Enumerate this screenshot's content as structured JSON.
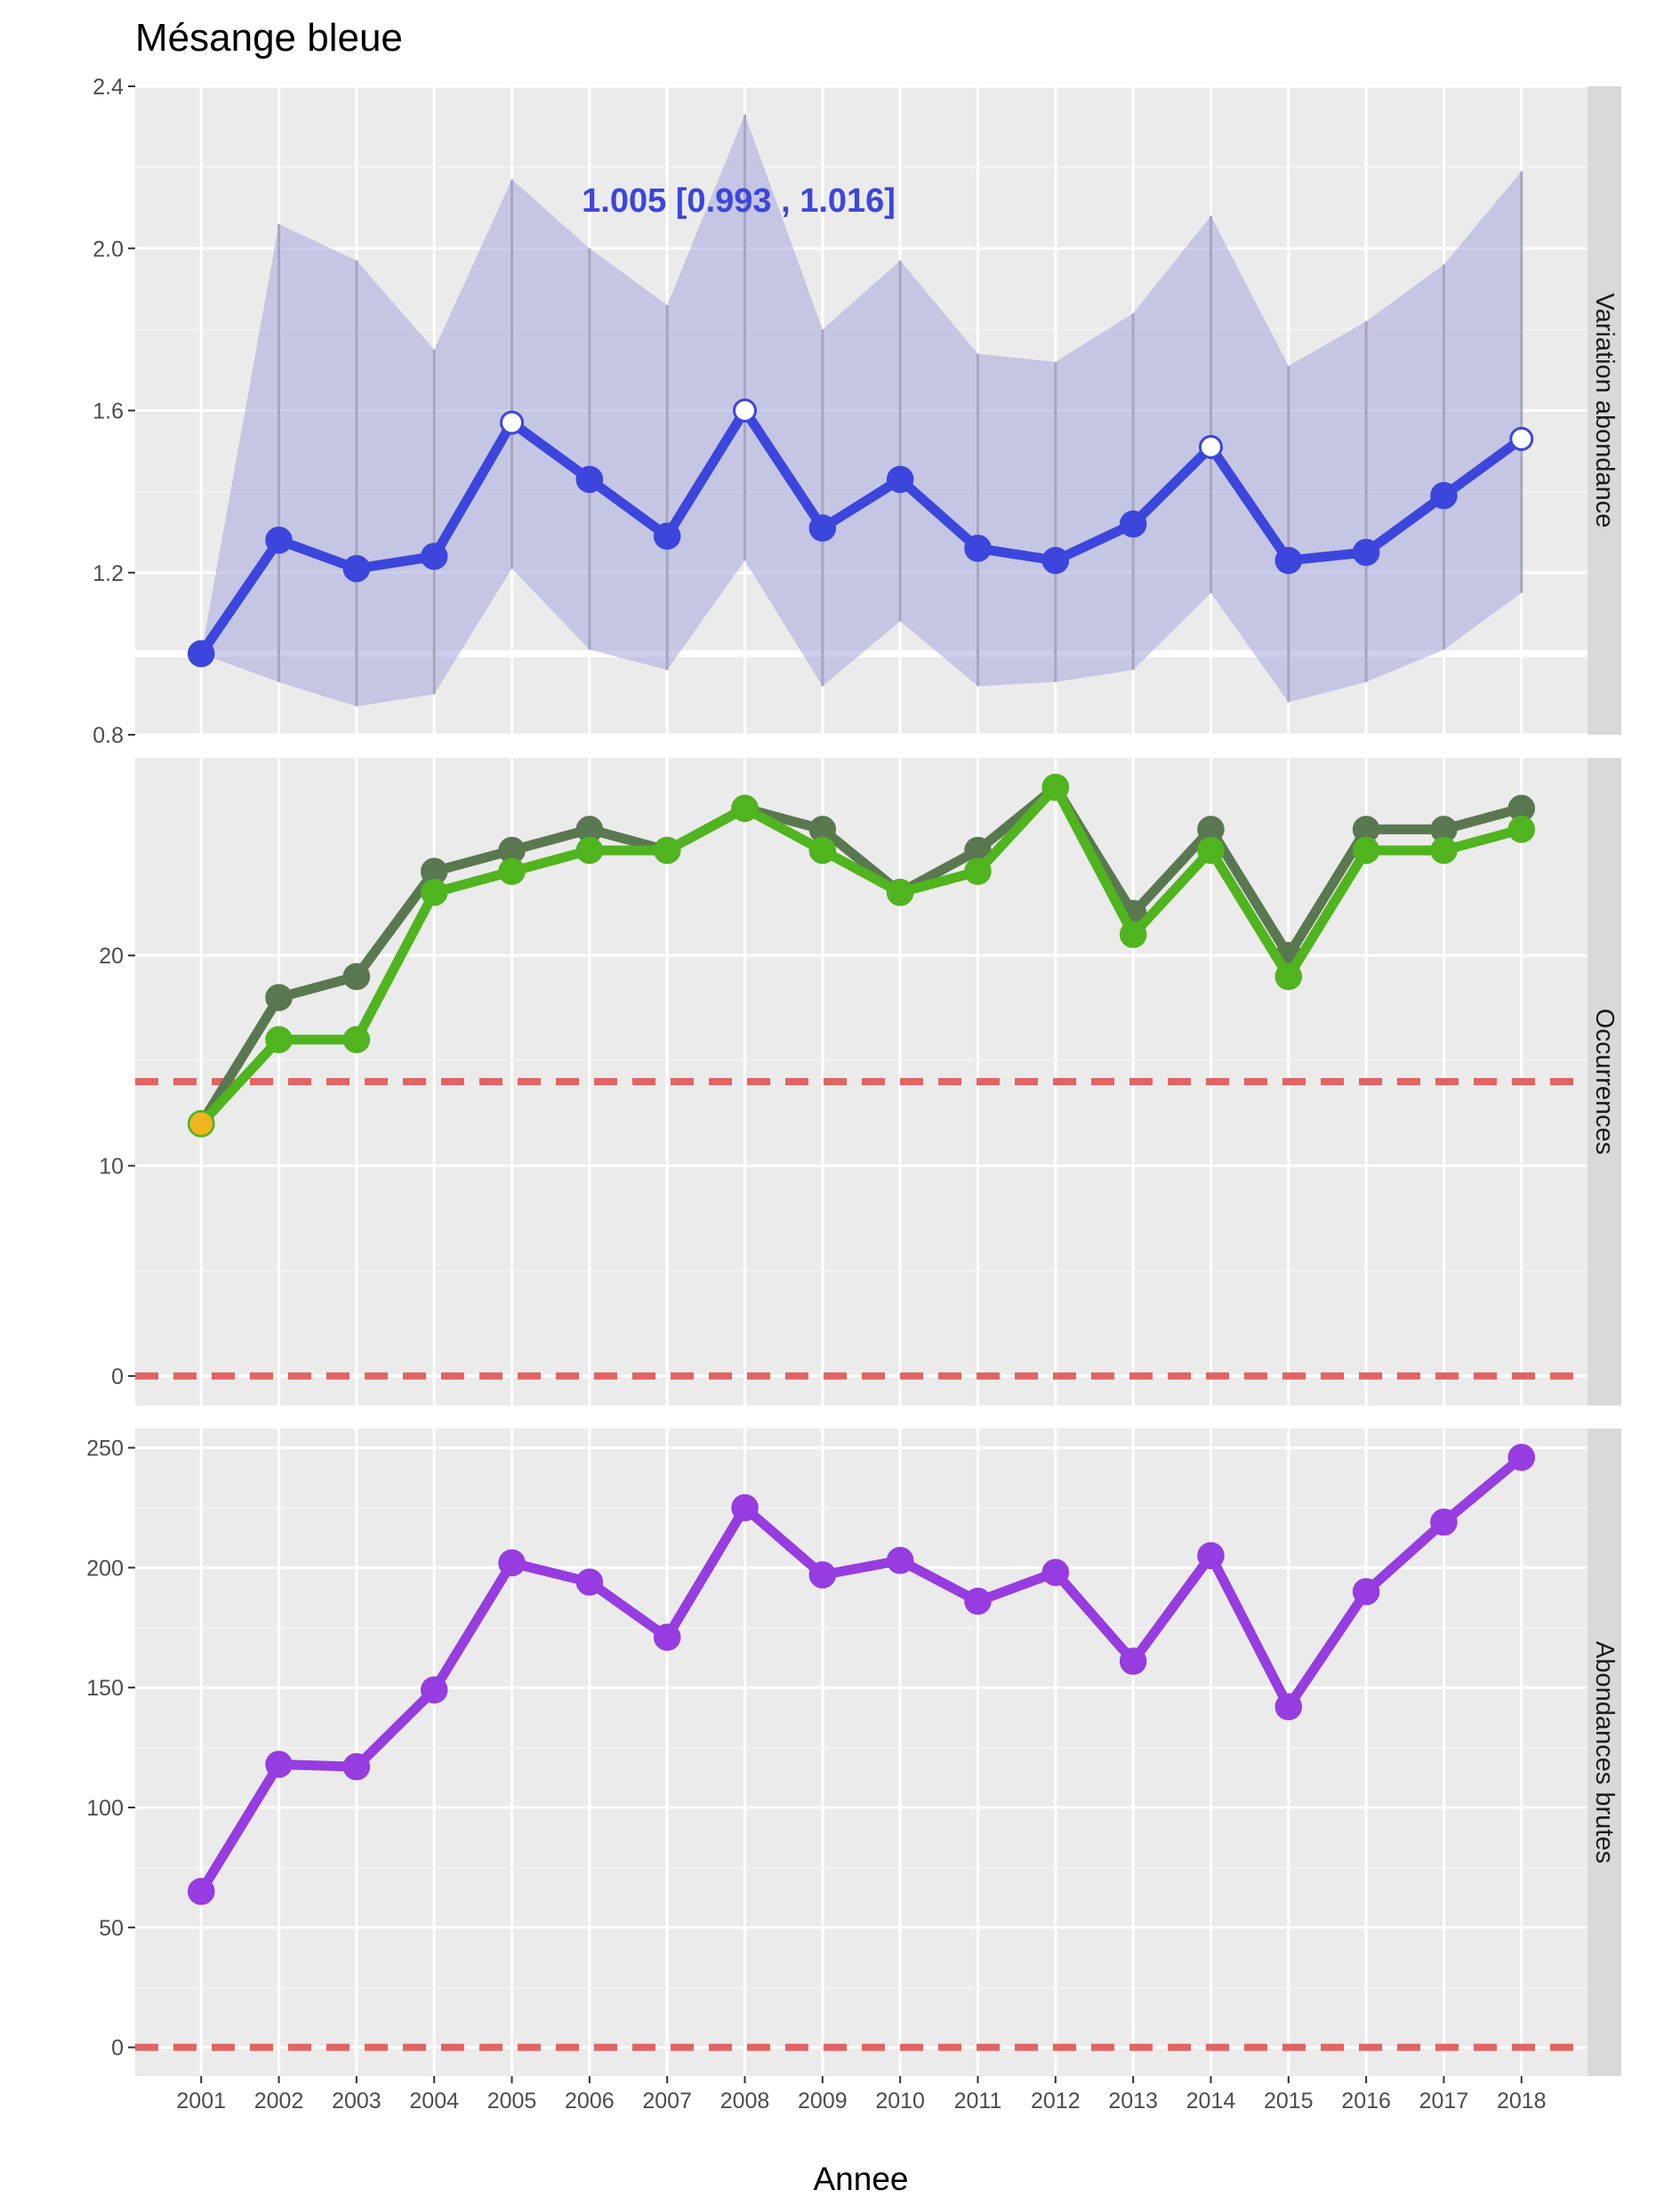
{
  "title": "Mésange bleue",
  "xlabel": "Annee",
  "chart_data": {
    "type": "line",
    "title": "Mésange bleue",
    "xlabel": "Annee",
    "x": [
      2001,
      2002,
      2003,
      2004,
      2005,
      2006,
      2007,
      2008,
      2009,
      2010,
      2011,
      2012,
      2013,
      2014,
      2015,
      2016,
      2017,
      2018
    ],
    "panels": [
      {
        "strip_label": "Variation abondance",
        "ylim": [
          0.8,
          2.4
        ],
        "yticks": [
          "0.8",
          "1.2",
          "1.6",
          "2.0",
          "2.4"
        ],
        "ytick_values": [
          0.8,
          1.2,
          1.6,
          2.0,
          2.4
        ],
        "reference_line": 1.0,
        "annotation": "1.005  [0.993 , 1.016]",
        "annotation_x": 2005.9,
        "annotation_y": 2.09,
        "ribbon_color": "#aaaee0",
        "series": [
          {
            "color": "#3c46dc",
            "values": [
              1.0,
              1.28,
              1.21,
              1.24,
              1.57,
              1.43,
              1.29,
              1.6,
              1.31,
              1.43,
              1.26,
              1.23,
              1.32,
              1.51,
              1.23,
              1.25,
              1.39,
              1.53
            ],
            "lower": [
              1.0,
              0.93,
              0.87,
              0.9,
              1.21,
              1.01,
              0.96,
              1.23,
              0.92,
              1.08,
              0.92,
              0.93,
              0.96,
              1.15,
              0.88,
              0.93,
              1.01,
              1.15
            ],
            "upper": [
              1.0,
              2.06,
              1.97,
              1.75,
              2.17,
              2.0,
              1.86,
              2.33,
              1.8,
              1.97,
              1.74,
              1.72,
              1.84,
              2.08,
              1.71,
              1.82,
              1.96,
              2.19
            ],
            "open_points": [
              2005,
              2008,
              2014,
              2018
            ]
          }
        ]
      },
      {
        "strip_label": "Occurrences",
        "ylim": [
          -1.4,
          29.4
        ],
        "yticks": [
          "0",
          "10",
          "20"
        ],
        "ytick_values": [
          0,
          10,
          20
        ],
        "dashed_lines": [
          0,
          14
        ],
        "series": [
          {
            "color": "#5a7850",
            "values": [
              12,
              18,
              19,
              24,
              25,
              26,
              25,
              27,
              26,
              23,
              25,
              28,
              22,
              26,
              20,
              26,
              26,
              27
            ]
          },
          {
            "color": "#50b41e",
            "values": [
              12,
              16,
              16,
              23,
              24,
              25,
              25,
              27,
              25,
              23,
              24,
              28,
              21,
              25,
              19,
              25,
              25,
              26
            ],
            "highlight_point": {
              "x": 2001,
              "color": "#f0b41e"
            }
          }
        ]
      },
      {
        "strip_label": "Abondances brutes",
        "ylim": [
          -12,
          258
        ],
        "yticks": [
          "0",
          "50",
          "100",
          "150",
          "200",
          "250"
        ],
        "ytick_values": [
          0,
          50,
          100,
          150,
          200,
          250
        ],
        "dashed_lines": [
          0
        ],
        "series": [
          {
            "color": "#963ce1",
            "values": [
              65,
              118,
              117,
              149,
              202,
              194,
              171,
              225,
              197,
              203,
              186,
              198,
              161,
              205,
              142,
              190,
              219,
              246
            ]
          }
        ]
      }
    ]
  }
}
